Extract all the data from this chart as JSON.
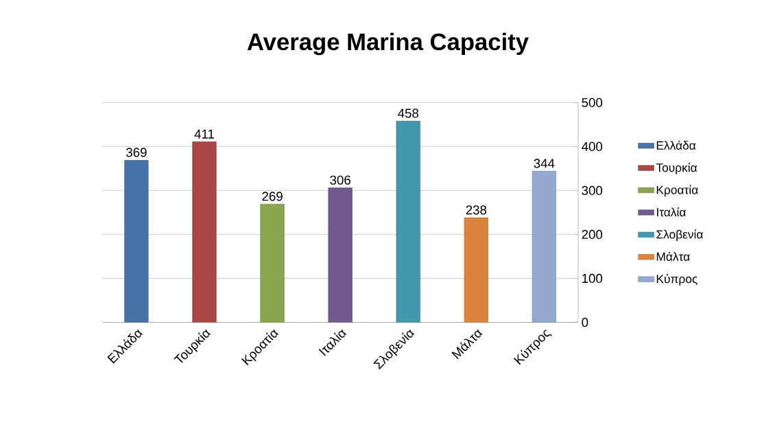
{
  "chart_data": {
    "type": "bar",
    "title": "Average Marina Capacity",
    "categories": [
      "Ελλάδα",
      "Τουρκία",
      "Κροατία",
      "Ιταλία",
      "Σλοβενία",
      "Μάλτα",
      "Κύπρος"
    ],
    "series": [
      {
        "name": "Ελλάδα",
        "color": "#4572a7",
        "values": [
          369,
          null,
          null,
          null,
          null,
          null,
          null
        ]
      },
      {
        "name": "Τουρκία",
        "color": "#aa4643",
        "values": [
          null,
          411,
          null,
          null,
          null,
          null,
          null
        ]
      },
      {
        "name": "Κροατία",
        "color": "#89a54e",
        "values": [
          null,
          null,
          269,
          null,
          null,
          null,
          null
        ]
      },
      {
        "name": "Ιταλία",
        "color": "#71588f",
        "values": [
          null,
          null,
          null,
          306,
          null,
          null,
          null
        ]
      },
      {
        "name": "Σλοβενία",
        "color": "#4198af",
        "values": [
          null,
          null,
          null,
          null,
          458,
          null,
          null
        ]
      },
      {
        "name": "Μάλτα",
        "color": "#db843d",
        "values": [
          null,
          null,
          null,
          null,
          null,
          238,
          null
        ]
      },
      {
        "name": "Κύπρος",
        "color": "#93a9cf",
        "values": [
          null,
          null,
          null,
          null,
          null,
          null,
          344
        ]
      }
    ],
    "ylim": [
      0,
      500
    ],
    "yticks": [
      0,
      100,
      200,
      300,
      400,
      500
    ],
    "grid": "y",
    "legend": "right",
    "data_labels": true
  }
}
